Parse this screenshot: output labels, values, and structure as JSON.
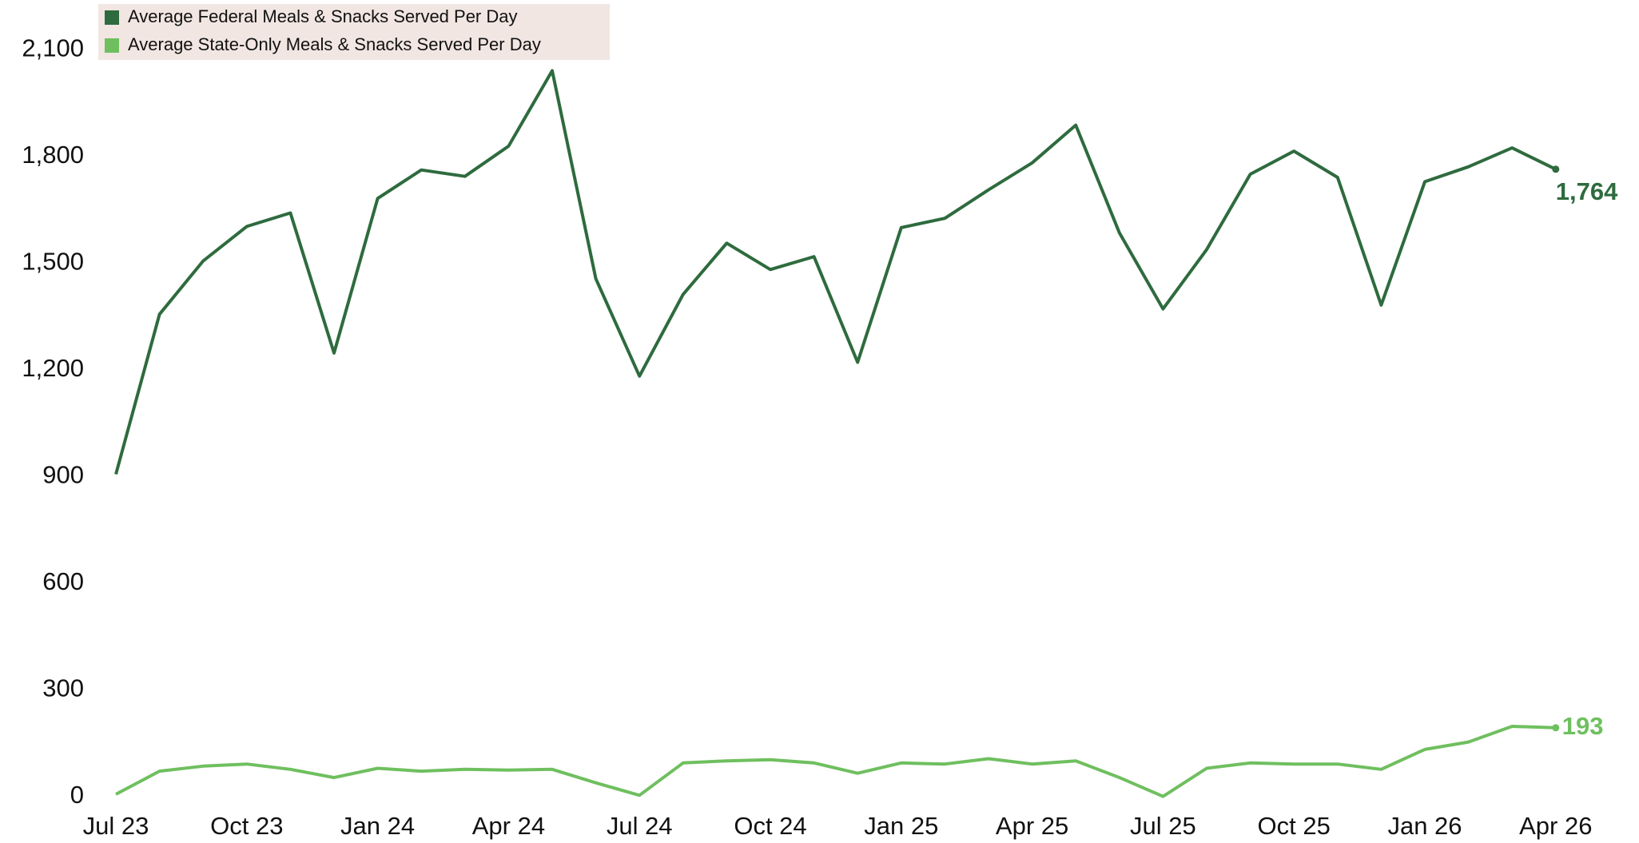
{
  "chart_data": {
    "type": "line",
    "categories": [
      "Jul 23",
      null,
      null,
      "Oct 23",
      null,
      null,
      "Jan 24",
      null,
      null,
      "Apr 24",
      null,
      null,
      "Jul 24",
      null,
      null,
      "Oct 24",
      null,
      null,
      "Jan 25",
      null,
      null,
      "Apr 25",
      null,
      null,
      "Jul 25",
      null,
      null,
      "Oct 25",
      null,
      null,
      "Jan 26",
      null,
      null,
      "Apr 26"
    ],
    "series": [
      {
        "name": "Average Federal Meals & Snacks Served Per Day",
        "color": "#2e6b3e",
        "values": [
          906,
          1356,
          1506,
          1603,
          1641,
          1247,
          1682,
          1762,
          1744,
          1829,
          2041,
          1456,
          1182,
          1412,
          1556,
          1482,
          1518,
          1221,
          1600,
          1626,
          1706,
          1782,
          1888,
          1585,
          1371,
          1538,
          1750,
          1815,
          1741,
          1382,
          1729,
          1771,
          1824,
          1764
        ],
        "value_labels": [
          null,
          null,
          null,
          null,
          null,
          null,
          null,
          null,
          null,
          null,
          null,
          null,
          null,
          null,
          null,
          null,
          null,
          null,
          null,
          null,
          null,
          null,
          null,
          null,
          null,
          null,
          null,
          null,
          null,
          null,
          null,
          null,
          null,
          "1,764"
        ]
      },
      {
        "name": "Average State-Only Meals & Snacks Served Per Day",
        "color": "#6fbf5f",
        "values": [
          6,
          71,
          85,
          91,
          76,
          53,
          79,
          71,
          76,
          74,
          76,
          38,
          3,
          94,
          100,
          103,
          94,
          65,
          94,
          91,
          106,
          91,
          100,
          53,
          0,
          79,
          94,
          91,
          91,
          76,
          132,
          153,
          197,
          193
        ],
        "value_labels": [
          null,
          null,
          null,
          null,
          null,
          null,
          null,
          null,
          null,
          null,
          null,
          null,
          null,
          null,
          null,
          null,
          null,
          null,
          null,
          null,
          null,
          null,
          null,
          null,
          null,
          null,
          null,
          null,
          null,
          null,
          null,
          null,
          null,
          "193"
        ]
      }
    ],
    "ylim": [
      -30,
      2240
    ],
    "yticks": [
      0,
      300,
      600,
      900,
      {
        "value": 1200,
        "label": "1,200"
      },
      {
        "value": 1500,
        "label": "1,500"
      },
      {
        "value": 1800,
        "label": "1,800"
      },
      {
        "value": 2100,
        "label": "2,100"
      }
    ],
    "legend": "top-left",
    "grid": false
  }
}
